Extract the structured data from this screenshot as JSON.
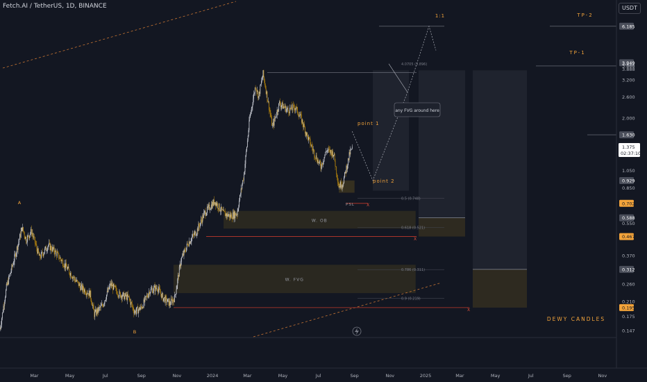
{
  "header": {
    "title": "Fetch.AI / TetherUS, 1D, BINANCE",
    "unit": "USDT"
  },
  "chart_data": {
    "type": "candlestick",
    "y_scale": "log",
    "ylim": [
      0.135,
      7.2
    ],
    "x_range": [
      "2023-01-01",
      "2025-11-25"
    ],
    "x_ticks": [
      {
        "label": "Mar",
        "date": "2023-03-01"
      },
      {
        "label": "May",
        "date": "2023-05-01"
      },
      {
        "label": "Jul",
        "date": "2023-07-01"
      },
      {
        "label": "Sep",
        "date": "2023-09-01"
      },
      {
        "label": "Nov",
        "date": "2023-11-01"
      },
      {
        "label": "2024",
        "date": "2024-01-01"
      },
      {
        "label": "Mar",
        "date": "2024-03-01"
      },
      {
        "label": "May",
        "date": "2024-05-01"
      },
      {
        "label": "Jul",
        "date": "2024-07-01"
      },
      {
        "label": "Sep",
        "date": "2024-09-01"
      },
      {
        "label": "Nov",
        "date": "2024-11-01"
      },
      {
        "label": "2025",
        "date": "2025-01-01"
      },
      {
        "label": "Mar",
        "date": "2025-03-01"
      },
      {
        "label": "May",
        "date": "2025-05-01"
      },
      {
        "label": "Jul",
        "date": "2025-07-01"
      },
      {
        "label": "Sep",
        "date": "2025-09-01"
      },
      {
        "label": "Nov",
        "date": "2025-11-01"
      }
    ],
    "y_ticks": [
      "3.200",
      "2.600",
      "2.000",
      "1.050",
      "0.850",
      "0.550",
      "0.370",
      "0.260",
      "0.210",
      "0.175",
      "0.147"
    ],
    "price_badges": [
      {
        "label": "6.185",
        "value": 6.185,
        "style": "grey"
      },
      {
        "label": "3.949",
        "value": 3.949,
        "style": "grey"
      },
      {
        "label": "3.912",
        "value": 3.912,
        "style": "plain"
      },
      {
        "label": "3.888",
        "value": 3.8,
        "style": "plain"
      },
      {
        "label": "3.888",
        "value": 3.66,
        "style": "plain"
      },
      {
        "label": "1.630",
        "value": 1.63,
        "style": "grey"
      },
      {
        "label": "0.929",
        "value": 0.929,
        "style": "grey"
      },
      {
        "label": "0.702",
        "value": 0.702,
        "style": "orange"
      },
      {
        "label": "0.588",
        "value": 0.588,
        "style": "grey"
      },
      {
        "label": "0.467",
        "value": 0.467,
        "style": "orange"
      },
      {
        "label": "0.312",
        "value": 0.312,
        "style": "grey"
      },
      {
        "label": "0.195",
        "value": 0.195,
        "style": "orange"
      }
    ],
    "last_price": {
      "price": "1.375",
      "countdown": "02:37:10",
      "value": 1.375
    },
    "price_path": [
      [
        "2023-01-01",
        0.15
      ],
      [
        "2023-01-12",
        0.25
      ],
      [
        "2023-01-25",
        0.35
      ],
      [
        "2023-02-08",
        0.52
      ],
      [
        "2023-02-15",
        0.45
      ],
      [
        "2023-02-24",
        0.5
      ],
      [
        "2023-03-10",
        0.36
      ],
      [
        "2023-03-25",
        0.42
      ],
      [
        "2023-04-08",
        0.38
      ],
      [
        "2023-04-22",
        0.33
      ],
      [
        "2023-05-08",
        0.28
      ],
      [
        "2023-05-20",
        0.25
      ],
      [
        "2023-06-05",
        0.23
      ],
      [
        "2023-06-12",
        0.18
      ],
      [
        "2023-06-26",
        0.2
      ],
      [
        "2023-07-10",
        0.26
      ],
      [
        "2023-07-25",
        0.23
      ],
      [
        "2023-08-10",
        0.22
      ],
      [
        "2023-08-20",
        0.185
      ],
      [
        "2023-09-01",
        0.195
      ],
      [
        "2023-09-15",
        0.24
      ],
      [
        "2023-09-28",
        0.25
      ],
      [
        "2023-10-08",
        0.22
      ],
      [
        "2023-10-20",
        0.205
      ],
      [
        "2023-10-28",
        0.22
      ],
      [
        "2023-11-08",
        0.35
      ],
      [
        "2023-11-20",
        0.43
      ],
      [
        "2023-12-05",
        0.5
      ],
      [
        "2023-12-18",
        0.62
      ],
      [
        "2024-01-05",
        0.72
      ],
      [
        "2024-01-20",
        0.62
      ],
      [
        "2024-02-01",
        0.6
      ],
      [
        "2024-02-12",
        0.62
      ],
      [
        "2024-02-24",
        1.0
      ],
      [
        "2024-03-05",
        2.0
      ],
      [
        "2024-03-15",
        3.0
      ],
      [
        "2024-03-20",
        2.6
      ],
      [
        "2024-03-28",
        3.45
      ],
      [
        "2024-04-05",
        2.5
      ],
      [
        "2024-04-13",
        1.8
      ],
      [
        "2024-04-25",
        2.4
      ],
      [
        "2024-05-10",
        2.2
      ],
      [
        "2024-05-22",
        2.3
      ],
      [
        "2024-06-01",
        2.0
      ],
      [
        "2024-06-12",
        1.6
      ],
      [
        "2024-06-24",
        1.3
      ],
      [
        "2024-07-05",
        1.1
      ],
      [
        "2024-07-15",
        1.35
      ],
      [
        "2024-07-27",
        1.3
      ],
      [
        "2024-08-05",
        0.87
      ],
      [
        "2024-08-12",
        0.9
      ],
      [
        "2024-08-24",
        1.3
      ],
      [
        "2024-08-28",
        1.375
      ]
    ],
    "zones": [
      {
        "label": "W. OB",
        "top": 0.64,
        "bottom": 0.515,
        "from": "2024-01-20",
        "to": "2024-12-15"
      },
      {
        "label": "W. FVG",
        "top": 0.33,
        "bottom": 0.233,
        "from": "2023-10-26",
        "to": "2024-12-15"
      }
    ],
    "fib_levels": [
      {
        "label": "0.5 (0.748)",
        "value": 0.748
      },
      {
        "label": "0.618 (0.521)",
        "value": 0.521
      },
      {
        "label": "0.786 (0.311)",
        "value": 0.311
      },
      {
        "label": "0.9 (0.219)",
        "value": 0.219
      },
      {
        "label": "4.0705 (3.896)",
        "value": 3.896
      }
    ],
    "annotations": {
      "wave_a": "A",
      "wave_b": "B",
      "point_1": "point 1",
      "point_2": "point 2",
      "ssl": "PSL",
      "x_marks": [
        "X",
        "X",
        "X"
      ],
      "fvg_note": "any FVG around here",
      "ratio": "1:1",
      "tp2": "TP-2",
      "tp1": "TP-1",
      "author": "DEWY CANDLES"
    },
    "colors": {
      "background": "#131722",
      "up": "#d1d4dc",
      "down": "#b8860b",
      "accent": "#f2a33a",
      "zone": "#3a3320"
    },
    "grid": false,
    "logo_icon": "tradingview-icon"
  }
}
